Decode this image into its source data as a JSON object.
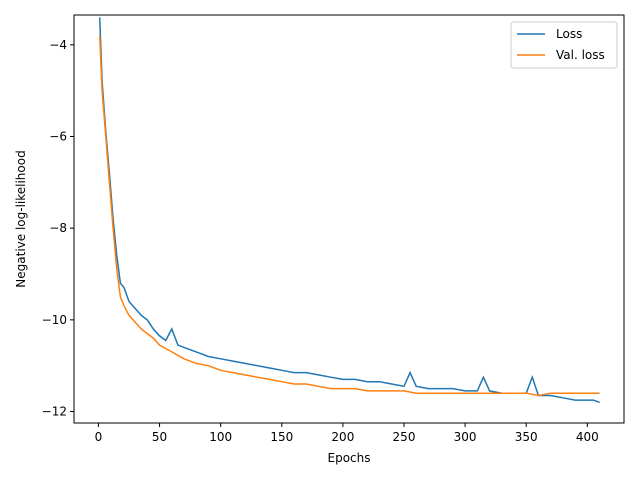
{
  "chart_data": {
    "type": "line",
    "title": "",
    "xlabel": "Epochs",
    "ylabel": "Negative log-likelihood",
    "xlim": [
      -20,
      430
    ],
    "ylim": [
      -12.25,
      -3.35
    ],
    "xticks": [
      0,
      50,
      100,
      150,
      200,
      250,
      300,
      350,
      400
    ],
    "yticks": [
      -12,
      -10,
      -8,
      -6,
      -4
    ],
    "ytick_labels": [
      "−12",
      "−10",
      "−8",
      "−6",
      "−4"
    ],
    "legend_position": "top-right",
    "grid": false,
    "series": [
      {
        "name": "Loss",
        "color": "#1f77b4",
        "points": [
          [
            1,
            -3.4
          ],
          [
            3,
            -4.8
          ],
          [
            6,
            -5.9
          ],
          [
            9,
            -6.8
          ],
          [
            12,
            -7.8
          ],
          [
            15,
            -8.6
          ],
          [
            18,
            -9.2
          ],
          [
            21,
            -9.3
          ],
          [
            25,
            -9.6
          ],
          [
            30,
            -9.75
          ],
          [
            35,
            -9.9
          ],
          [
            40,
            -10.0
          ],
          [
            45,
            -10.2
          ],
          [
            50,
            -10.35
          ],
          [
            55,
            -10.45
          ],
          [
            60,
            -10.2
          ],
          [
            65,
            -10.55
          ],
          [
            70,
            -10.6
          ],
          [
            80,
            -10.7
          ],
          [
            90,
            -10.8
          ],
          [
            100,
            -10.85
          ],
          [
            110,
            -10.9
          ],
          [
            120,
            -10.95
          ],
          [
            130,
            -11.0
          ],
          [
            140,
            -11.05
          ],
          [
            150,
            -11.1
          ],
          [
            160,
            -11.15
          ],
          [
            170,
            -11.15
          ],
          [
            180,
            -11.2
          ],
          [
            190,
            -11.25
          ],
          [
            200,
            -11.3
          ],
          [
            210,
            -11.3
          ],
          [
            220,
            -11.35
          ],
          [
            230,
            -11.35
          ],
          [
            240,
            -11.4
          ],
          [
            250,
            -11.45
          ],
          [
            255,
            -11.15
          ],
          [
            260,
            -11.45
          ],
          [
            270,
            -11.5
          ],
          [
            280,
            -11.5
          ],
          [
            290,
            -11.5
          ],
          [
            300,
            -11.55
          ],
          [
            310,
            -11.55
          ],
          [
            315,
            -11.25
          ],
          [
            320,
            -11.55
          ],
          [
            330,
            -11.6
          ],
          [
            340,
            -11.6
          ],
          [
            350,
            -11.6
          ],
          [
            355,
            -11.25
          ],
          [
            360,
            -11.65
          ],
          [
            370,
            -11.65
          ],
          [
            380,
            -11.7
          ],
          [
            390,
            -11.75
          ],
          [
            400,
            -11.75
          ],
          [
            405,
            -11.75
          ],
          [
            410,
            -11.8
          ]
        ]
      },
      {
        "name": "Val. loss",
        "color": "#ff7f0e",
        "points": [
          [
            1,
            -3.8
          ],
          [
            3,
            -5.0
          ],
          [
            6,
            -6.0
          ],
          [
            9,
            -7.0
          ],
          [
            12,
            -8.0
          ],
          [
            15,
            -8.9
          ],
          [
            18,
            -9.5
          ],
          [
            21,
            -9.7
          ],
          [
            25,
            -9.9
          ],
          [
            30,
            -10.05
          ],
          [
            35,
            -10.2
          ],
          [
            40,
            -10.3
          ],
          [
            45,
            -10.4
          ],
          [
            50,
            -10.55
          ],
          [
            60,
            -10.7
          ],
          [
            70,
            -10.85
          ],
          [
            80,
            -10.95
          ],
          [
            90,
            -11.0
          ],
          [
            100,
            -11.1
          ],
          [
            110,
            -11.15
          ],
          [
            120,
            -11.2
          ],
          [
            130,
            -11.25
          ],
          [
            140,
            -11.3
          ],
          [
            150,
            -11.35
          ],
          [
            160,
            -11.4
          ],
          [
            170,
            -11.4
          ],
          [
            180,
            -11.45
          ],
          [
            190,
            -11.5
          ],
          [
            200,
            -11.5
          ],
          [
            210,
            -11.5
          ],
          [
            220,
            -11.55
          ],
          [
            230,
            -11.55
          ],
          [
            240,
            -11.55
          ],
          [
            250,
            -11.55
          ],
          [
            260,
            -11.6
          ],
          [
            270,
            -11.6
          ],
          [
            280,
            -11.6
          ],
          [
            290,
            -11.6
          ],
          [
            300,
            -11.6
          ],
          [
            310,
            -11.6
          ],
          [
            320,
            -11.6
          ],
          [
            330,
            -11.6
          ],
          [
            340,
            -11.6
          ],
          [
            350,
            -11.6
          ],
          [
            360,
            -11.65
          ],
          [
            370,
            -11.6
          ],
          [
            380,
            -11.6
          ],
          [
            390,
            -11.6
          ],
          [
            400,
            -11.6
          ],
          [
            410,
            -11.6
          ]
        ]
      }
    ]
  }
}
